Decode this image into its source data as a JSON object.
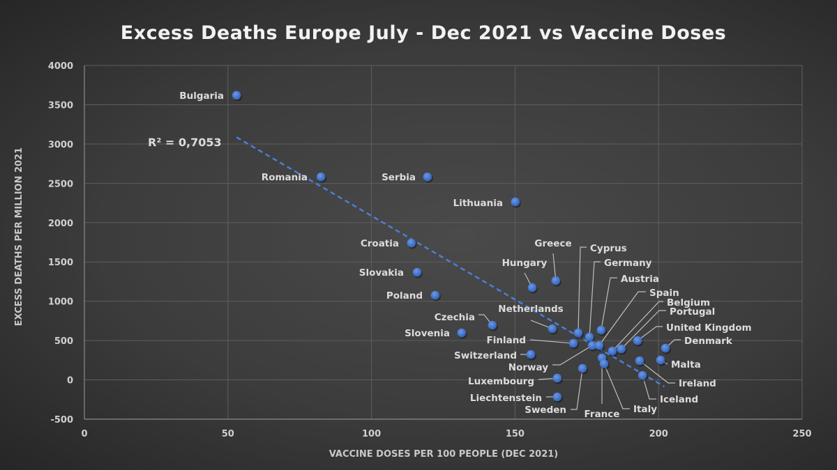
{
  "chart_data": {
    "type": "scatter",
    "title": "Excess Deaths Europe July - Dec 2021 vs Vaccine Doses",
    "xlabel": "VACCINE DOSES PER 100 PEOPLE (DEC 2021)",
    "ylabel": "EXCESS DEATHS PER MILLION 2021",
    "xlim": [
      0,
      250
    ],
    "ylim": [
      -500,
      4000
    ],
    "xticks": [
      0,
      50,
      100,
      150,
      200,
      250
    ],
    "yticks": [
      -500,
      0,
      500,
      1000,
      1500,
      2000,
      2500,
      3000,
      3500,
      4000
    ],
    "grid": true,
    "marker_color": "#4472c4",
    "trendline": {
      "type": "linear",
      "x": [
        53,
        202
      ],
      "y": [
        3087,
        -85
      ],
      "label": "R² = 0,7053",
      "style": "dashed"
    },
    "points": [
      {
        "label": "Bulgaria",
        "x": 53,
        "y": 3620
      },
      {
        "label": "Romania",
        "x": 82.4,
        "y": 2582
      },
      {
        "label": "Serbia",
        "x": 119.5,
        "y": 2582
      },
      {
        "label": "Lithuania",
        "x": 150.1,
        "y": 2264
      },
      {
        "label": "Croatia",
        "x": 113.9,
        "y": 1741
      },
      {
        "label": "Slovakia",
        "x": 115.9,
        "y": 1369
      },
      {
        "label": "Poland",
        "x": 122.2,
        "y": 1076
      },
      {
        "label": "Hungary",
        "x": 156,
        "y": 1174
      },
      {
        "label": "Greece",
        "x": 164.2,
        "y": 1262
      },
      {
        "label": "Czechia",
        "x": 142.1,
        "y": 695
      },
      {
        "label": "Slovenia",
        "x": 131.4,
        "y": 598
      },
      {
        "label": "Netherlands",
        "x": 163,
        "y": 651
      },
      {
        "label": "Cyprus",
        "x": 172,
        "y": 598
      },
      {
        "label": "Germany",
        "x": 175.9,
        "y": 545
      },
      {
        "label": "Austria",
        "x": 180,
        "y": 633
      },
      {
        "label": "Finland",
        "x": 170.3,
        "y": 465
      },
      {
        "label": "Switzerland",
        "x": 155.5,
        "y": 323
      },
      {
        "label": "Norway",
        "x": 176.9,
        "y": 438
      },
      {
        "label": "Spain",
        "x": 179.3,
        "y": 438
      },
      {
        "label": "Belgium",
        "x": 183.9,
        "y": 367
      },
      {
        "label": "Portugal",
        "x": 187,
        "y": 394
      },
      {
        "label": "United Kingdom",
        "x": 192.7,
        "y": 500
      },
      {
        "label": "Denmark",
        "x": 202.4,
        "y": 403
      },
      {
        "label": "Malta",
        "x": 200.7,
        "y": 252
      },
      {
        "label": "Ireland",
        "x": 193.4,
        "y": 243
      },
      {
        "label": "Iceland",
        "x": 194.4,
        "y": 57
      },
      {
        "label": "France",
        "x": 180.3,
        "y": 280
      },
      {
        "label": "Italy",
        "x": 181,
        "y": 205
      },
      {
        "label": "Sweden",
        "x": 173.5,
        "y": 146
      },
      {
        "label": "Luxembourg",
        "x": 164.7,
        "y": 22
      },
      {
        "label": "Liechtenstein",
        "x": 164.7,
        "y": -217
      }
    ]
  }
}
